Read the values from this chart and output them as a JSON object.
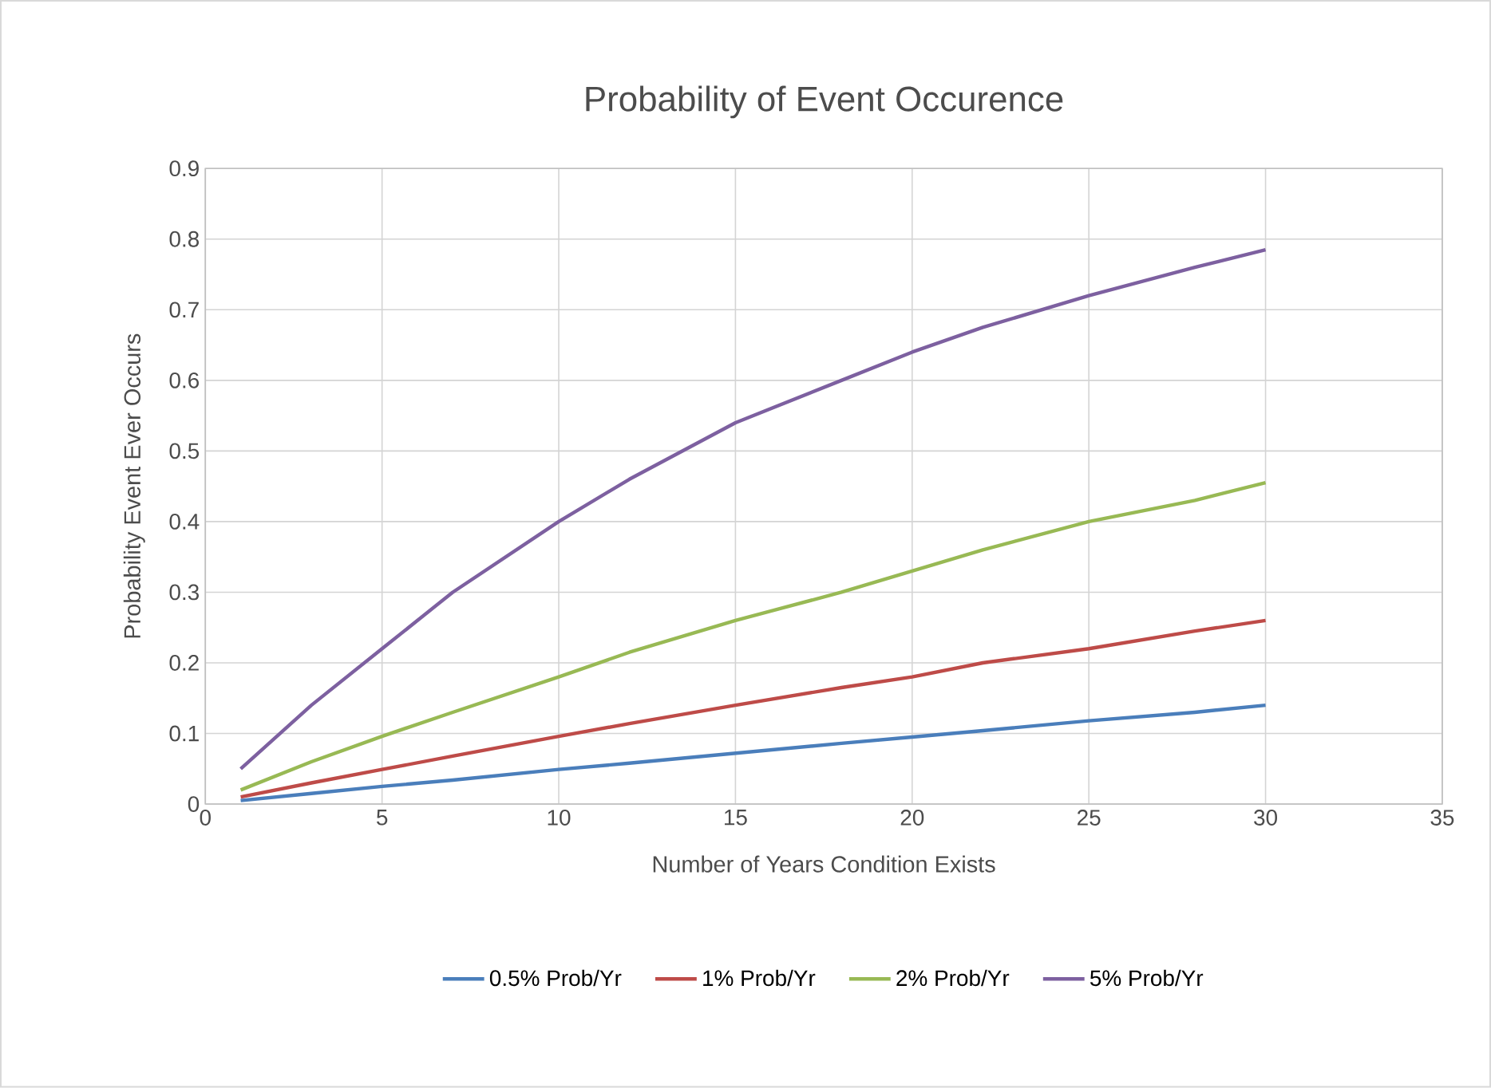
{
  "chart_data": {
    "type": "line",
    "title": "Probability of Event Occurence",
    "xlabel": "Number of Years Condition Exists",
    "ylabel": "Probability Event Ever Occurs",
    "x": [
      1,
      3,
      5,
      7,
      10,
      12,
      15,
      18,
      20,
      22,
      25,
      28,
      30
    ],
    "series": [
      {
        "name": "0.5% Prob/Yr",
        "color": "#4a7ebb",
        "values": [
          0.005,
          0.015,
          0.025,
          0.034,
          0.049,
          0.058,
          0.072,
          0.086,
          0.095,
          0.104,
          0.118,
          0.13,
          0.14
        ]
      },
      {
        "name": "1% Prob/Yr",
        "color": "#be4b48",
        "values": [
          0.01,
          0.03,
          0.049,
          0.068,
          0.096,
          0.114,
          0.14,
          0.165,
          0.18,
          0.2,
          0.22,
          0.245,
          0.26
        ]
      },
      {
        "name": "2% Prob/Yr",
        "color": "#98b954",
        "values": [
          0.02,
          0.06,
          0.096,
          0.13,
          0.18,
          0.215,
          0.26,
          0.3,
          0.33,
          0.36,
          0.4,
          0.43,
          0.455
        ]
      },
      {
        "name": "5% Prob/Yr",
        "color": "#7d60a0",
        "values": [
          0.05,
          0.14,
          0.22,
          0.3,
          0.4,
          0.46,
          0.54,
          0.6,
          0.64,
          0.675,
          0.72,
          0.76,
          0.785
        ]
      }
    ],
    "xlim": [
      0,
      35
    ],
    "xticks": [
      0,
      5,
      10,
      15,
      20,
      25,
      30,
      35
    ],
    "ylim": [
      0,
      0.9
    ],
    "yticks": [
      0,
      0.1,
      0.2,
      0.3,
      0.4,
      0.5,
      0.6,
      0.7,
      0.8,
      0.9
    ],
    "grid": true,
    "legend": "bottom"
  }
}
